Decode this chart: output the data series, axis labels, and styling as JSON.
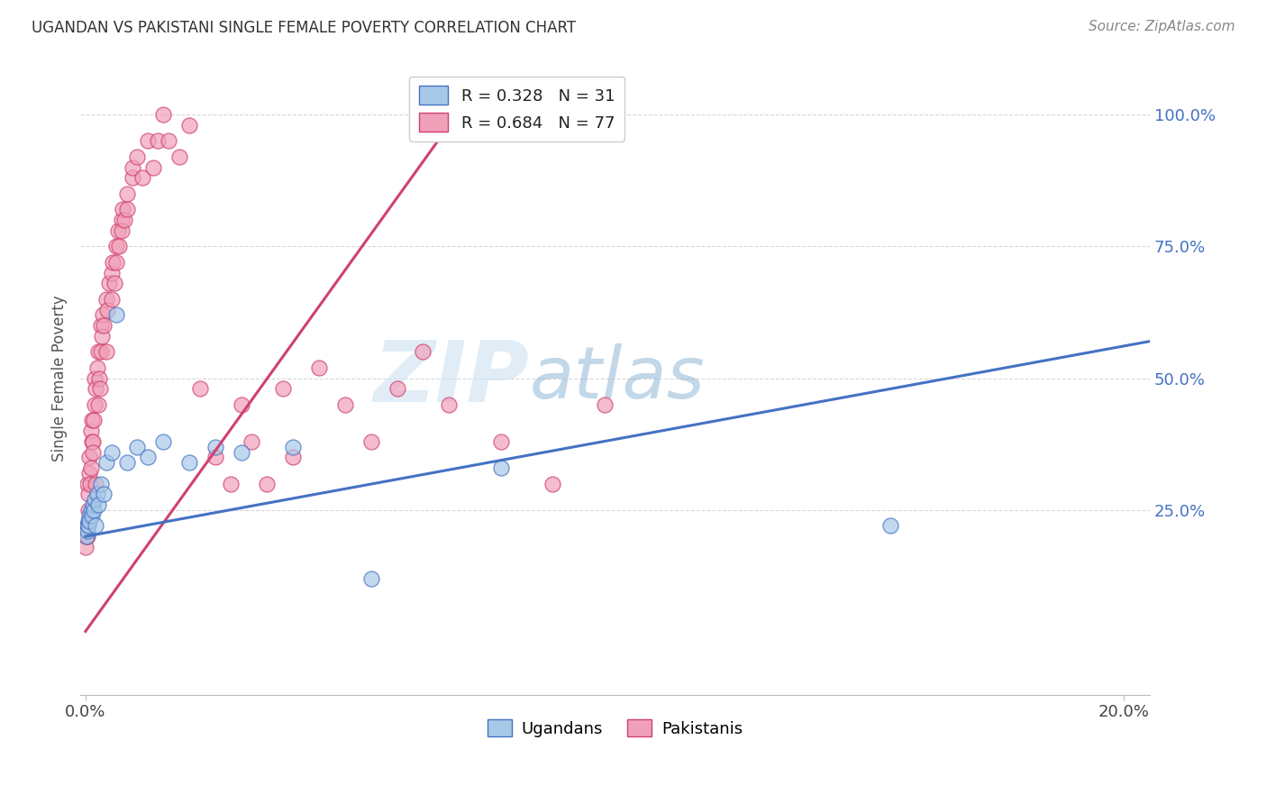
{
  "title": "UGANDAN VS PAKISTANI SINGLE FEMALE POVERTY CORRELATION CHART",
  "source": "Source: ZipAtlas.com",
  "ylabel": "Single Female Poverty",
  "xlim": [
    -0.001,
    0.205
  ],
  "ylim": [
    -0.1,
    1.1
  ],
  "ugandan_R": 0.328,
  "ugandan_N": 31,
  "pakistani_R": 0.684,
  "pakistani_N": 77,
  "ugandan_color": "#a8c8e8",
  "pakistani_color": "#f0a0b8",
  "ugandan_line_color": "#4472c4",
  "pakistani_line_color": "#d04070",
  "background_color": "#ffffff",
  "grid_color": "#d8d8d8",
  "ugandan_scatter_x": [
    0.0002,
    0.0003,
    0.0004,
    0.0005,
    0.0006,
    0.0007,
    0.0008,
    0.001,
    0.0012,
    0.0014,
    0.0016,
    0.0018,
    0.002,
    0.0022,
    0.0025,
    0.003,
    0.0035,
    0.004,
    0.005,
    0.006,
    0.008,
    0.01,
    0.012,
    0.015,
    0.02,
    0.025,
    0.03,
    0.04,
    0.055,
    0.08,
    0.155
  ],
  "ugandan_scatter_y": [
    0.2,
    0.22,
    0.21,
    0.23,
    0.22,
    0.24,
    0.23,
    0.25,
    0.24,
    0.26,
    0.25,
    0.27,
    0.22,
    0.28,
    0.26,
    0.3,
    0.28,
    0.34,
    0.36,
    0.62,
    0.34,
    0.37,
    0.35,
    0.38,
    0.34,
    0.37,
    0.36,
    0.37,
    0.12,
    0.33,
    0.22
  ],
  "pakistani_scatter_x": [
    0.0001,
    0.0002,
    0.0003,
    0.0004,
    0.0004,
    0.0005,
    0.0006,
    0.0007,
    0.0008,
    0.0009,
    0.001,
    0.001,
    0.0012,
    0.0013,
    0.0014,
    0.0015,
    0.0016,
    0.0017,
    0.0018,
    0.002,
    0.002,
    0.0022,
    0.0024,
    0.0025,
    0.0026,
    0.0028,
    0.003,
    0.003,
    0.0032,
    0.0034,
    0.0035,
    0.004,
    0.004,
    0.0042,
    0.0045,
    0.005,
    0.005,
    0.0052,
    0.0055,
    0.006,
    0.006,
    0.0062,
    0.0065,
    0.007,
    0.007,
    0.0072,
    0.0075,
    0.008,
    0.008,
    0.009,
    0.009,
    0.01,
    0.011,
    0.012,
    0.013,
    0.014,
    0.015,
    0.016,
    0.018,
    0.02,
    0.022,
    0.025,
    0.028,
    0.03,
    0.032,
    0.035,
    0.038,
    0.04,
    0.045,
    0.05,
    0.055,
    0.06,
    0.065,
    0.07,
    0.08,
    0.09,
    0.1
  ],
  "pakistani_scatter_y": [
    0.18,
    0.2,
    0.22,
    0.2,
    0.3,
    0.25,
    0.28,
    0.32,
    0.35,
    0.3,
    0.33,
    0.4,
    0.38,
    0.42,
    0.38,
    0.36,
    0.42,
    0.45,
    0.5,
    0.3,
    0.48,
    0.52,
    0.45,
    0.55,
    0.5,
    0.48,
    0.55,
    0.6,
    0.58,
    0.62,
    0.6,
    0.55,
    0.65,
    0.63,
    0.68,
    0.7,
    0.65,
    0.72,
    0.68,
    0.75,
    0.72,
    0.78,
    0.75,
    0.8,
    0.78,
    0.82,
    0.8,
    0.85,
    0.82,
    0.88,
    0.9,
    0.92,
    0.88,
    0.95,
    0.9,
    0.95,
    1.0,
    0.95,
    0.92,
    0.98,
    0.48,
    0.35,
    0.3,
    0.45,
    0.38,
    0.3,
    0.48,
    0.35,
    0.52,
    0.45,
    0.38,
    0.48,
    0.55,
    0.45,
    0.38,
    0.3,
    0.45
  ],
  "pk_line_x": [
    0.0,
    0.073
  ],
  "pk_line_y": [
    0.02,
    1.02
  ],
  "ug_line_x": [
    0.0,
    0.205
  ],
  "ug_line_y": [
    0.2,
    0.57
  ],
  "ytick_positions": [
    0.25,
    0.5,
    0.75,
    1.0
  ],
  "ytick_labels": [
    "25.0%",
    "50.0%",
    "75.0%",
    "100.0%"
  ],
  "xtick_positions": [
    0.0,
    0.2
  ],
  "xtick_labels": [
    "0.0%",
    "20.0%"
  ],
  "legend1_labels": [
    "R = 0.328   N = 31",
    "R = 0.684   N = 77"
  ],
  "legend2_labels": [
    "Ugandans",
    "Pakistanis"
  ],
  "watermark_zip": "ZIP",
  "watermark_atlas": "atlas"
}
